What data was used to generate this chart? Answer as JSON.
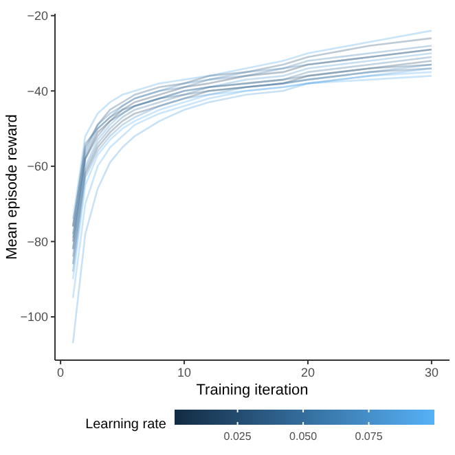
{
  "chart_data": {
    "type": "line",
    "xlabel": "Training iteration",
    "ylabel": "Mean episode reward",
    "clabel": "Learning rate",
    "x": [
      1,
      2,
      3,
      4,
      5,
      6,
      8,
      10,
      12,
      15,
      18,
      20,
      25,
      30
    ],
    "xlim": [
      -0.45,
      31.45
    ],
    "xticks": [
      0,
      10,
      20,
      30
    ],
    "ylim": [
      -111.5,
      -19.5
    ],
    "yticks": [
      -100,
      -80,
      -60,
      -40,
      -20
    ],
    "clim": [
      0.001,
      0.1
    ],
    "cticks": [
      {
        "value": 0.025,
        "label": "0.025"
      },
      {
        "value": 0.05,
        "label": "0.050"
      },
      {
        "value": 0.075,
        "label": "0.075"
      }
    ],
    "grid": false,
    "series": [
      {
        "color": "#4fa4e5",
        "values": [
          -74,
          -52,
          -46,
          -43,
          -41,
          -40,
          -38,
          -37,
          -36,
          -34,
          -32,
          -30,
          -27,
          -24
        ]
      },
      {
        "color": "#275379",
        "values": [
          -76,
          -55,
          -49,
          -45,
          -43,
          -41,
          -39,
          -38,
          -36,
          -35,
          -33,
          -31,
          -28,
          -26
        ]
      },
      {
        "color": "#3b7baf",
        "values": [
          -78,
          -57,
          -50,
          -47,
          -44,
          -42,
          -40,
          -38,
          -37,
          -35,
          -34,
          -32,
          -30,
          -28
        ]
      },
      {
        "color": "#1a3855",
        "values": [
          -80,
          -58,
          -51,
          -48,
          -45,
          -43,
          -41,
          -39,
          -38,
          -36,
          -35,
          -33,
          -31,
          -29
        ]
      },
      {
        "color": "#4996d3",
        "values": [
          -82,
          -60,
          -53,
          -49,
          -46,
          -44,
          -42,
          -40,
          -39,
          -37,
          -36,
          -34,
          -32,
          -30
        ]
      },
      {
        "color": "#356e9d",
        "values": [
          -84,
          -61,
          -54,
          -50,
          -47,
          -45,
          -43,
          -41,
          -39,
          -38,
          -37,
          -35,
          -33,
          -31
        ]
      },
      {
        "color": "#204667",
        "values": [
          -86,
          -62,
          -55,
          -51,
          -48,
          -46,
          -44,
          -42,
          -40,
          -39,
          -38,
          -36,
          -34,
          -32
        ]
      },
      {
        "color": "#4289c1",
        "values": [
          -88,
          -63,
          -56,
          -52,
          -49,
          -47,
          -44,
          -42,
          -41,
          -39,
          -38,
          -37,
          -35,
          -33
        ]
      },
      {
        "color": "#2e618b",
        "values": [
          -76,
          -54,
          -50,
          -47,
          -45,
          -44,
          -42,
          -41,
          -40,
          -39,
          -38,
          -37,
          -35,
          -34
        ]
      },
      {
        "color": "#56b1f7",
        "values": [
          -90,
          -65,
          -57,
          -53,
          -50,
          -48,
          -45,
          -43,
          -41,
          -40,
          -39,
          -38,
          -36,
          -35
        ]
      },
      {
        "color": "#53aaee",
        "values": [
          -95,
          -70,
          -60,
          -55,
          -52,
          -49,
          -46,
          -44,
          -42,
          -40,
          -39,
          -38,
          -37,
          -36
        ]
      },
      {
        "color": "#4c9ddc",
        "values": [
          -107,
          -78,
          -66,
          -59,
          -55,
          -52,
          -48,
          -45,
          -43,
          -41,
          -40,
          -38,
          -36,
          -34
        ]
      },
      {
        "color": "#2a5a82",
        "values": [
          -82,
          -58,
          -52,
          -48,
          -46,
          -44,
          -42,
          -40,
          -39,
          -38,
          -37,
          -36,
          -34,
          -33
        ]
      },
      {
        "color": "#3875a6",
        "values": [
          -79,
          -56,
          -49,
          -46,
          -44,
          -42,
          -40,
          -39,
          -37,
          -36,
          -34,
          -33,
          -31,
          -29
        ]
      }
    ]
  }
}
